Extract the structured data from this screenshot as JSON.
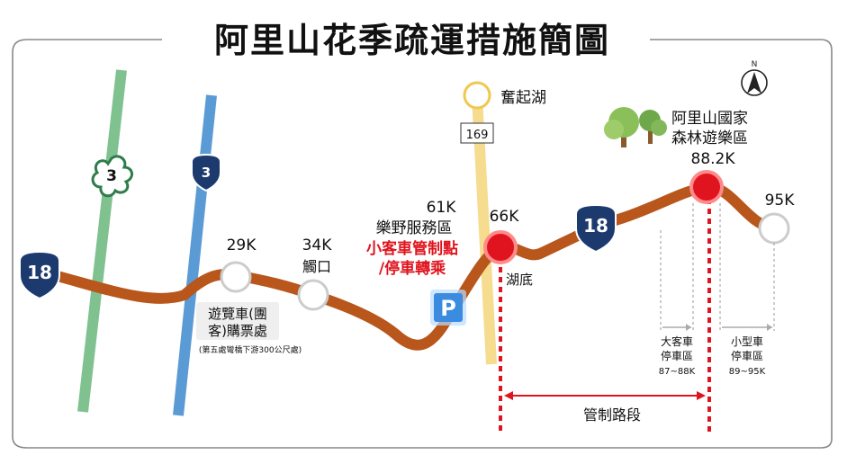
{
  "title": "阿里山花季疏運措施簡圖",
  "compass": {
    "label": "N"
  },
  "routes": {
    "provincial_18": "18",
    "county_3_green": "3",
    "provincial_3_blue": "3"
  },
  "lake": {
    "name": "奮起湖",
    "road": "169"
  },
  "park": {
    "line1": "阿里山國家",
    "line2": "森林遊樂區"
  },
  "markers": {
    "k29": "29K",
    "k34": "34K",
    "k34_place": "觸口",
    "k61": "61K",
    "k61_place": "樂野服務區",
    "k61_red1": "小客車管制點",
    "k61_red2": "/停車轉乘",
    "k66": "66K",
    "k66_place": "湖底",
    "k88": "88.2K",
    "k95": "95K"
  },
  "parking_icon": "P",
  "ticket": {
    "line1": "遊覽車(團",
    "line2": "客)購票處",
    "note": "(第五處彎橋下游300公尺處)"
  },
  "bus_parking": {
    "line1": "大客車",
    "line2": "停車區",
    "range": "87~88K"
  },
  "car_parking": {
    "line1": "小型車",
    "line2": "停車區",
    "range": "89~95K"
  },
  "control_section": "管制路段",
  "colors": {
    "road": "#b8561b",
    "green_route": "#7fc18f",
    "blue_route": "#5b9bd5",
    "yellow_route": "#f6dc8f",
    "red": "#e0141e",
    "shield_blue": "#1d3a6e",
    "parking_blue": "#3b8be0"
  }
}
